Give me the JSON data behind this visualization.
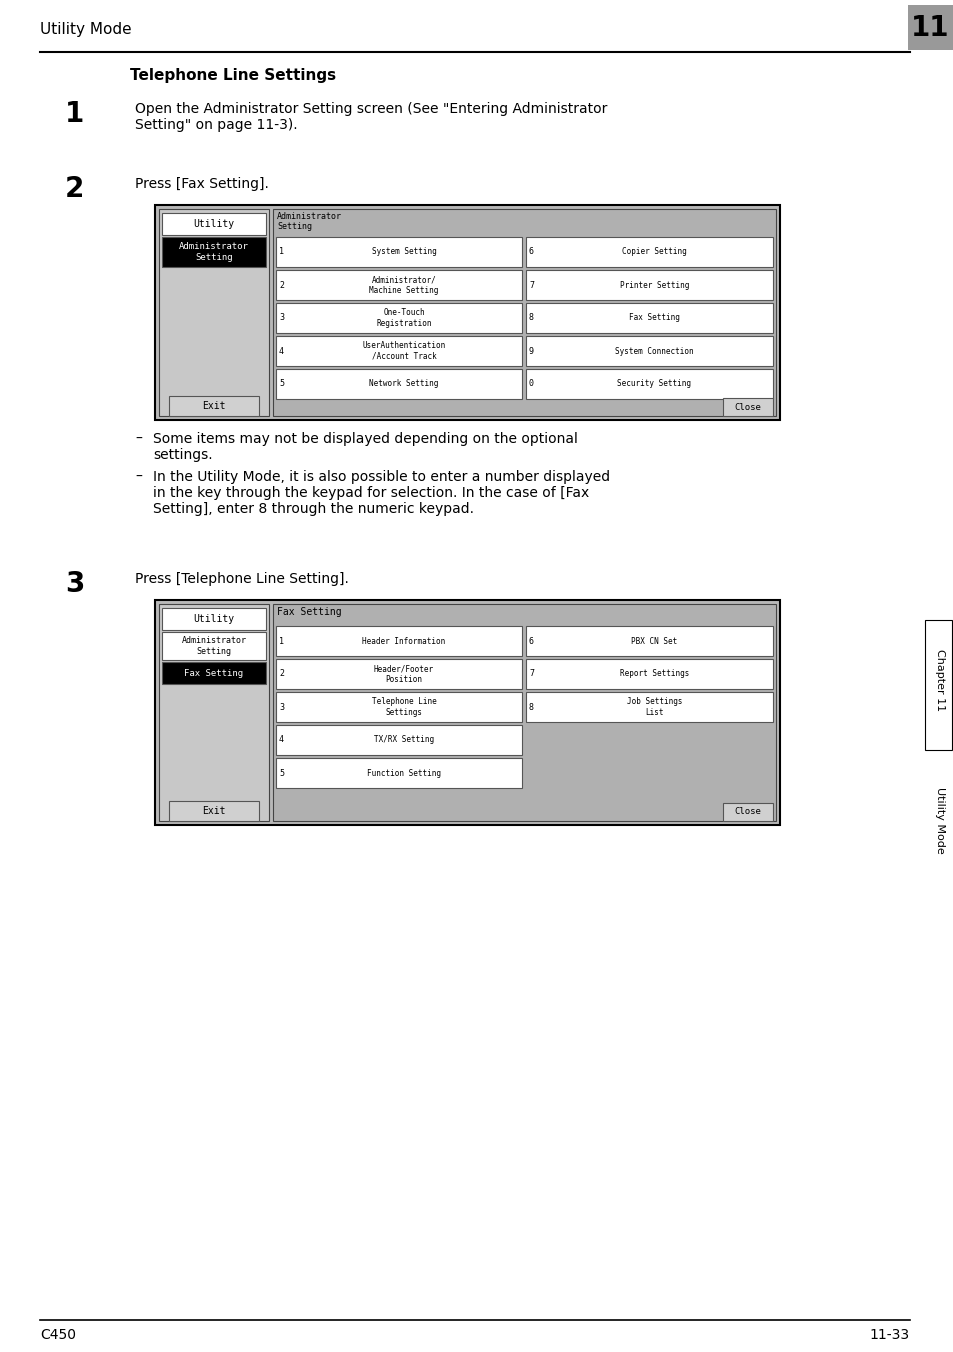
{
  "title_header": "Utility Mode",
  "chapter_num": "11",
  "footer_left": "C450",
  "footer_right": "11-33",
  "section_title": "Telephone Line Settings",
  "step1_num": "1",
  "step1_text": "Open the Administrator Setting screen (See \"Entering Administrator\nSetting\" on page 11-3).",
  "step2_num": "2",
  "step2_text": "Press [Fax Setting].",
  "step3_num": "3",
  "step3_text": "Press [Telephone Line Setting].",
  "bullet1": "Some items may not be displayed depending on the optional\nsettings.",
  "bullet2": "In the Utility Mode, it is also possible to enter a number displayed\nin the key through the keypad for selection. In the case of [Fax\nSetting], enter 8 through the numeric keypad.",
  "screen1_left_btn1": "Utility",
  "screen1_left_btn2": "Administrator\nSetting",
  "screen1_exit": "Exit",
  "screen1_title": "Administrator\nSetting",
  "screen1_btns_left": [
    {
      "num": "1",
      "label": "System Setting"
    },
    {
      "num": "2",
      "label": "Administrator/\nMachine Setting"
    },
    {
      "num": "3",
      "label": "One-Touch\nRegistration"
    },
    {
      "num": "4",
      "label": "UserAuthentication\n/Account Track"
    },
    {
      "num": "5",
      "label": "Network Setting"
    }
  ],
  "screen1_btns_right": [
    {
      "num": "6",
      "label": "Copier Setting"
    },
    {
      "num": "7",
      "label": "Printer Setting"
    },
    {
      "num": "8",
      "label": "Fax Setting"
    },
    {
      "num": "9",
      "label": "System Connection"
    },
    {
      "num": "0",
      "label": "Security Setting"
    }
  ],
  "screen1_close": "Close",
  "screen2_left_btn1": "Utility",
  "screen2_left_btn2": "Administrator\nSetting",
  "screen2_left_btn3": "Fax Setting",
  "screen2_exit": "Exit",
  "screen2_title": "Fax Setting",
  "screen2_btns_left": [
    {
      "num": "1",
      "label": "Header Information"
    },
    {
      "num": "2",
      "label": "Header/Footer\nPosition"
    },
    {
      "num": "3",
      "label": "Telephone Line\nSettings"
    },
    {
      "num": "4",
      "label": "TX/RX Setting"
    },
    {
      "num": "5",
      "label": "Function Setting"
    }
  ],
  "screen2_btns_right": [
    {
      "num": "6",
      "label": "PBX CN Set"
    },
    {
      "num": "7",
      "label": "Report Settings"
    },
    {
      "num": "8",
      "label": "Job Settings\nList"
    }
  ],
  "screen2_close": "Close",
  "sidebar_ch": "Chapter 11",
  "sidebar_um": "Utility Mode",
  "bg_color": "#ffffff",
  "chapter_box_bg": "#999999"
}
